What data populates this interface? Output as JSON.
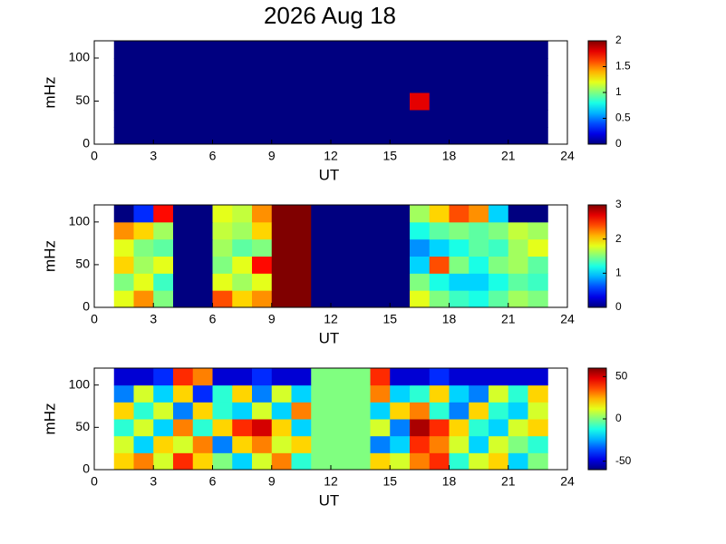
{
  "title": "2026 Aug 18",
  "chart_data": [
    {
      "type": "heatmap",
      "colormap": "jet",
      "xlabel": "UT",
      "ylabel": "mHz",
      "xlim": [
        0,
        24
      ],
      "xticks": [
        0,
        3,
        6,
        9,
        12,
        15,
        18,
        21,
        24
      ],
      "ylim": [
        0,
        120
      ],
      "yticks": [
        0,
        50,
        100
      ],
      "clim": [
        0,
        2
      ],
      "cticks": [
        0,
        0.5,
        1,
        1.5,
        2
      ],
      "x": [
        1.5,
        2.5,
        3.5,
        4.5,
        5.5,
        6.5,
        7.5,
        8.5,
        9.5,
        10.5,
        11.5,
        12.5,
        13.5,
        14.5,
        15.5,
        16.5,
        17.5,
        18.5,
        19.5,
        20.5,
        21.5,
        22.5
      ],
      "y": [
        10,
        30,
        50,
        70,
        90,
        110
      ],
      "values": [
        [
          0,
          0,
          0,
          0,
          0,
          0,
          0,
          0,
          0,
          0,
          0,
          0,
          0,
          0,
          0,
          0,
          0,
          0,
          0,
          0,
          0,
          0
        ],
        [
          0,
          0,
          0,
          0,
          0,
          0,
          0,
          0,
          0,
          0,
          0,
          0,
          0,
          0,
          0,
          0,
          0,
          0,
          0,
          0,
          0,
          0
        ],
        [
          0,
          0,
          0,
          0,
          0,
          0,
          0,
          0,
          0,
          0,
          0,
          0,
          0,
          0,
          0,
          1.8,
          0,
          0,
          0,
          0,
          0,
          0
        ],
        [
          0,
          0,
          0,
          0,
          0,
          0,
          0,
          0,
          0,
          0,
          0,
          0,
          0,
          0,
          0,
          0,
          0,
          0,
          0,
          0,
          0,
          0
        ],
        [
          0,
          0,
          0,
          0,
          0,
          0,
          0,
          0,
          0,
          0,
          0,
          0,
          0,
          0,
          0,
          0,
          0,
          0,
          0,
          0,
          0,
          0
        ],
        [
          0,
          0,
          0,
          0,
          0,
          0,
          0,
          0,
          0,
          0,
          0,
          0,
          0,
          0,
          0,
          0,
          0,
          0,
          0,
          0,
          0,
          0
        ]
      ]
    },
    {
      "type": "heatmap",
      "colormap": "jet",
      "xlabel": "UT",
      "ylabel": "mHz",
      "xlim": [
        0,
        24
      ],
      "xticks": [
        0,
        3,
        6,
        9,
        12,
        15,
        18,
        21,
        24
      ],
      "ylim": [
        0,
        120
      ],
      "yticks": [
        0,
        50,
        100
      ],
      "clim": [
        0,
        3
      ],
      "cticks": [
        0,
        1,
        2,
        3
      ],
      "x": [
        1.5,
        2.5,
        3.5,
        4.5,
        5.5,
        6.5,
        7.5,
        8.5,
        9.5,
        10.5,
        11.5,
        12.5,
        13.5,
        14.5,
        15.5,
        16.5,
        17.5,
        18.5,
        19.5,
        20.5,
        21.5,
        22.5
      ],
      "y": [
        10,
        30,
        50,
        70,
        90,
        110
      ],
      "values": [
        [
          1.8,
          2.2,
          1.5,
          0,
          0,
          2.4,
          2.0,
          2.2,
          3,
          3,
          0,
          0,
          0,
          0,
          0,
          1.8,
          1.5,
          1.3,
          1.2,
          1.4,
          1.6,
          1.5
        ],
        [
          1.5,
          1.8,
          1.3,
          0,
          0,
          1.8,
          1.6,
          1.8,
          3,
          3,
          0,
          0,
          0,
          0,
          0,
          1.5,
          1.2,
          1.0,
          1.0,
          1.2,
          1.4,
          1.3
        ],
        [
          2.0,
          1.6,
          1.8,
          0,
          0,
          1.5,
          1.8,
          2.6,
          3,
          3,
          0,
          0,
          0,
          0,
          0,
          1.0,
          2.4,
          1.5,
          1.2,
          1.5,
          1.6,
          1.4
        ],
        [
          1.8,
          1.5,
          1.4,
          0,
          0,
          1.6,
          1.4,
          1.5,
          3,
          3,
          0,
          0,
          0,
          0,
          0,
          0.8,
          1.0,
          1.2,
          1.4,
          1.3,
          1.6,
          1.8
        ],
        [
          2.2,
          2.0,
          1.6,
          0,
          0,
          1.7,
          1.6,
          2.0,
          3,
          3,
          0,
          0,
          0,
          0,
          0,
          1.2,
          1.4,
          1.5,
          1.4,
          1.5,
          1.7,
          1.6
        ],
        [
          0,
          0.5,
          2.6,
          0,
          0,
          1.8,
          1.7,
          2.2,
          3,
          3,
          0,
          0,
          0,
          0,
          0,
          1.6,
          2.0,
          2.4,
          2.2,
          1.0,
          0,
          0
        ]
      ]
    },
    {
      "type": "heatmap",
      "colormap": "jet",
      "xlabel": "UT",
      "ylabel": "mHz",
      "xlim": [
        0,
        24
      ],
      "xticks": [
        0,
        3,
        6,
        9,
        12,
        15,
        18,
        21,
        24
      ],
      "ylim": [
        0,
        120
      ],
      "yticks": [
        0,
        50,
        100
      ],
      "clim": [
        -60,
        60
      ],
      "cticks": [
        -50,
        0,
        50
      ],
      "x": [
        1.5,
        2.5,
        3.5,
        4.5,
        5.5,
        6.5,
        7.5,
        8.5,
        9.5,
        10.5,
        11.5,
        12.5,
        13.5,
        14.5,
        15.5,
        16.5,
        17.5,
        18.5,
        19.5,
        20.5,
        21.5,
        22.5
      ],
      "y": [
        10,
        30,
        50,
        70,
        90,
        110
      ],
      "values": [
        [
          20,
          30,
          10,
          40,
          20,
          0,
          -20,
          10,
          30,
          -10,
          0,
          0,
          0,
          20,
          10,
          30,
          40,
          -10,
          10,
          20,
          -20,
          0
        ],
        [
          10,
          -20,
          20,
          10,
          30,
          -30,
          20,
          30,
          10,
          20,
          0,
          0,
          0,
          -30,
          -20,
          40,
          30,
          10,
          -20,
          10,
          0,
          -10
        ],
        [
          -10,
          10,
          -20,
          30,
          -10,
          20,
          40,
          50,
          20,
          -20,
          0,
          0,
          0,
          10,
          -30,
          55,
          40,
          20,
          -10,
          -20,
          10,
          20
        ],
        [
          20,
          -10,
          10,
          -30,
          20,
          -10,
          -20,
          10,
          -20,
          30,
          0,
          0,
          0,
          -20,
          20,
          30,
          -10,
          -30,
          20,
          -10,
          -20,
          10
        ],
        [
          -30,
          10,
          -20,
          20,
          -40,
          -10,
          20,
          -30,
          10,
          -20,
          0,
          0,
          0,
          30,
          -20,
          -10,
          20,
          -20,
          -30,
          10,
          -10,
          20
        ],
        [
          -50,
          -50,
          -40,
          40,
          30,
          -50,
          -50,
          -40,
          -50,
          -50,
          0,
          0,
          0,
          40,
          -50,
          -50,
          -40,
          -50,
          -50,
          -50,
          -50,
          -50
        ]
      ]
    }
  ]
}
